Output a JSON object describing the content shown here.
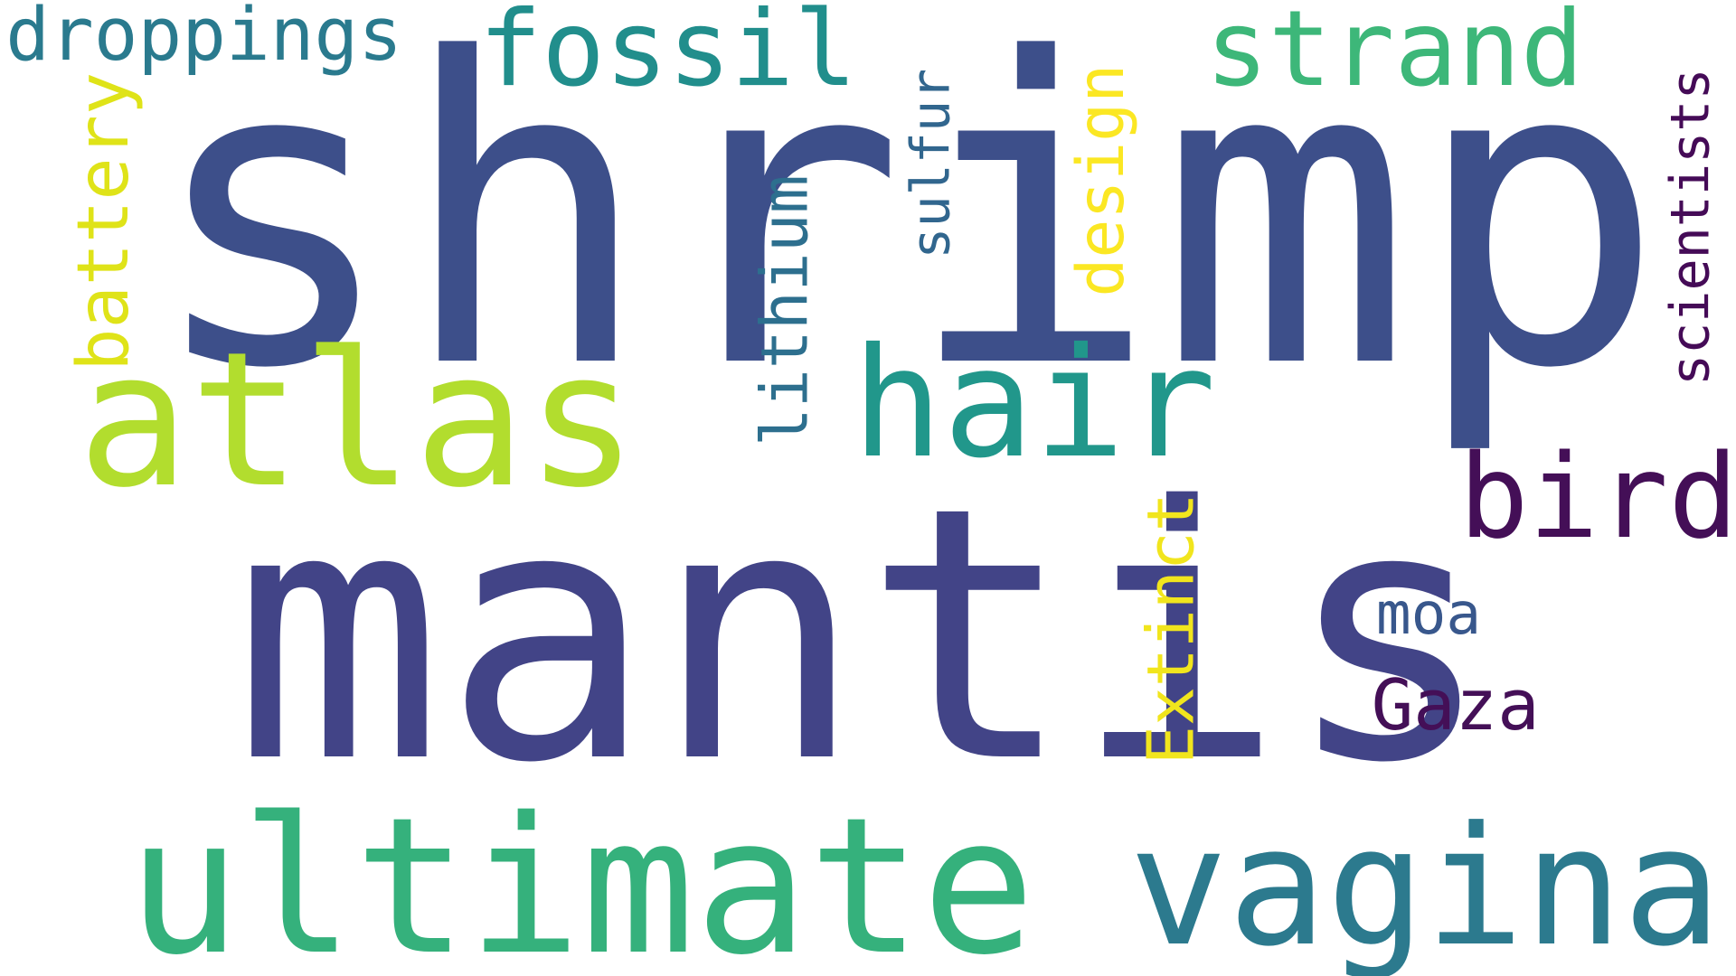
{
  "word_cloud": {
    "words": [
      {
        "text": "shrimp",
        "color": "#3d4f8a",
        "orientation": "horizontal"
      },
      {
        "text": "mantis",
        "color": "#424487",
        "orientation": "horizontal"
      },
      {
        "text": "ultimate",
        "color": "#35b17c",
        "orientation": "horizontal"
      },
      {
        "text": "atlas",
        "color": "#b2dd2e",
        "orientation": "horizontal"
      },
      {
        "text": "hair",
        "color": "#21978b",
        "orientation": "horizontal"
      },
      {
        "text": "vagina",
        "color": "#2c7a8e",
        "orientation": "horizontal"
      },
      {
        "text": "fossil",
        "color": "#218e8c",
        "orientation": "horizontal"
      },
      {
        "text": "strand",
        "color": "#3db779",
        "orientation": "horizontal"
      },
      {
        "text": "bird",
        "color": "#440f57",
        "orientation": "horizontal"
      },
      {
        "text": "droppings",
        "color": "#2a7a8e",
        "orientation": "horizontal"
      },
      {
        "text": "moa",
        "color": "#38578c",
        "orientation": "horizontal"
      },
      {
        "text": "Gaza",
        "color": "#440f57",
        "orientation": "horizontal"
      },
      {
        "text": "battery",
        "color": "#dfe318",
        "orientation": "vertical"
      },
      {
        "text": "lithium",
        "color": "#2d6f8e",
        "orientation": "vertical"
      },
      {
        "text": "sulfur",
        "color": "#31668e",
        "orientation": "vertical"
      },
      {
        "text": "design",
        "color": "#fbe723",
        "orientation": "vertical"
      },
      {
        "text": "Extinct",
        "color": "#f1e51d",
        "orientation": "vertical"
      },
      {
        "text": "scientists",
        "color": "#450b57",
        "orientation": "vertical"
      }
    ]
  }
}
